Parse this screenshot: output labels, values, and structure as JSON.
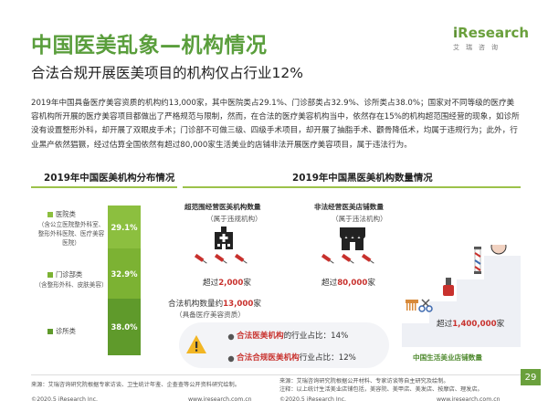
{
  "header": {
    "title": "中国医美乱象—机构情况",
    "subtitle": "合法合规开展医美项目的机构仅占行业12%",
    "logo_main": "Research",
    "logo_i": "i",
    "logo_sub": "艾瑞咨询"
  },
  "paragraph": "2019年中国具备医疗美容资质的机构约13,000家，其中医院类占29.1%、门诊部类占32.9%、诊所类占38.0%；国家对不同等级的医疗美容机构所开展的医疗美容项目都做出了严格规范与限制，然而，在合法的医疗美容机构当中，依然存在15%的机构超范围经营的现象，如诊所没有设置整形外科，却开展了双眼皮手术；门诊部不可做三级、四级手术项目，却开展了抽脂手术、颧骨降低术，均属于违规行为；此外，行业黑产依然猖獗，经过估算全国依然有超过80,000家生活美业的店铺非法开展医疗美容项目，属于违法行为。",
  "left_section": {
    "title": "2019年中国医美机构分布情况",
    "segments": [
      {
        "label": "医院类",
        "sub": "（含公立医院整外科室、整形外科医院、医疗美容医院）",
        "value_text": "29.1%",
        "value": 29.1,
        "color": "#8cbf3f"
      },
      {
        "label": "门诊部类",
        "sub": "（含整形外科、皮肤美容）",
        "value_text": "32.9%",
        "value": 32.9,
        "color": "#7cb233"
      },
      {
        "label": "诊所类",
        "sub": "",
        "value_text": "38.0%",
        "value": 38.0,
        "color": "#5f9a2b"
      }
    ]
  },
  "right_section": {
    "title": "2019年中国黑医美机构数量情况"
  },
  "overrange": {
    "title": "超范围经营医美机构数量",
    "sub": "（属于违规机构）",
    "count_prefix": "超过",
    "count": "2,000",
    "count_suffix": "家"
  },
  "illegal_shops": {
    "title": "非法经营医美店铺数量",
    "sub": "（属于违法机构）",
    "count_prefix": "超过",
    "count": "80,000",
    "count_suffix": "家"
  },
  "legal_total": {
    "prefix": "合法机构数量约",
    "count": "13,000",
    "suffix": "家",
    "sub": "（具备医疗美容资质）"
  },
  "life_beauty": {
    "prefix": "超过",
    "count": "1,400,000",
    "suffix": "家",
    "label": "中国生活美业店铺数量"
  },
  "warning": {
    "item1_label": "合法医美机构",
    "item1_text": "的行业占比：",
    "item1_value": "14%",
    "item2_label": "合法合规医美机构",
    "item2_text": "行业占比：",
    "item2_value": "12%"
  },
  "footer": {
    "source_left": "来源：艾瑞咨询研究院根据专家访谈、卫生统计年鉴、企查查等公开资料研究绘制。",
    "source_right1": "来源：艾瑞咨询研究院根据公开材料、专家访谈等自主研究及绘制。",
    "source_right2": "注释：以上统计生活美业店铺包括，美容院、美甲店、美发店、按摩店、理发店。",
    "copy_left": "©2020.5 iResearch Inc.",
    "url_left": "www.iresearch.com.cn",
    "copy_right": "©2020.5 iResearch Inc.",
    "url_right": "www.iresearch.com.cn",
    "page": "29"
  },
  "colors": {
    "title_green": "#5a9e3c",
    "accent_red": "#c8312d",
    "separator_green": "#9cc24a",
    "stair_gray": "#eef0f5"
  },
  "icons": [
    "hospital-icon",
    "syringe-icon",
    "shop-icon",
    "warning-icon",
    "bullet-dot-icon",
    "nurse-icon",
    "nail-polish-icon",
    "barber-pole-icon",
    "comb-icon",
    "scissors-icon"
  ]
}
